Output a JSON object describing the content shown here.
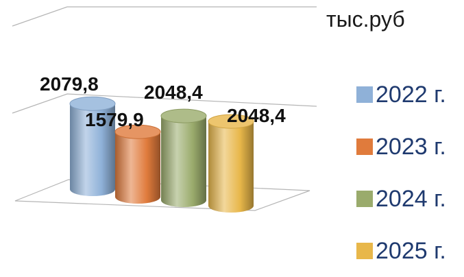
{
  "unit_label": "тыс.руб",
  "legend": [
    {
      "label": "2022 г.",
      "color": "#8fb1d8"
    },
    {
      "label": "2023 г.",
      "color": "#e07b3c"
    },
    {
      "label": "2024 г.",
      "color": "#9aab6c"
    },
    {
      "label": "2025 г.",
      "color": "#e8b74a"
    }
  ],
  "chart_data": {
    "type": "bar",
    "style": "3d-cylinder",
    "categories": [
      "2022 г.",
      "2023 г.",
      "2024 г.",
      "2025 г."
    ],
    "values": [
      2079.8,
      1579.9,
      2048.4,
      2048.4
    ],
    "data_labels": [
      "2079,8",
      "1579,9",
      "2048,4",
      "2048,4"
    ],
    "colors": [
      "#8fb1d8",
      "#e07b3c",
      "#9aab6c",
      "#e8b74a"
    ],
    "ylim": [
      0,
      3000
    ],
    "legend_position": "right",
    "grid": true
  }
}
